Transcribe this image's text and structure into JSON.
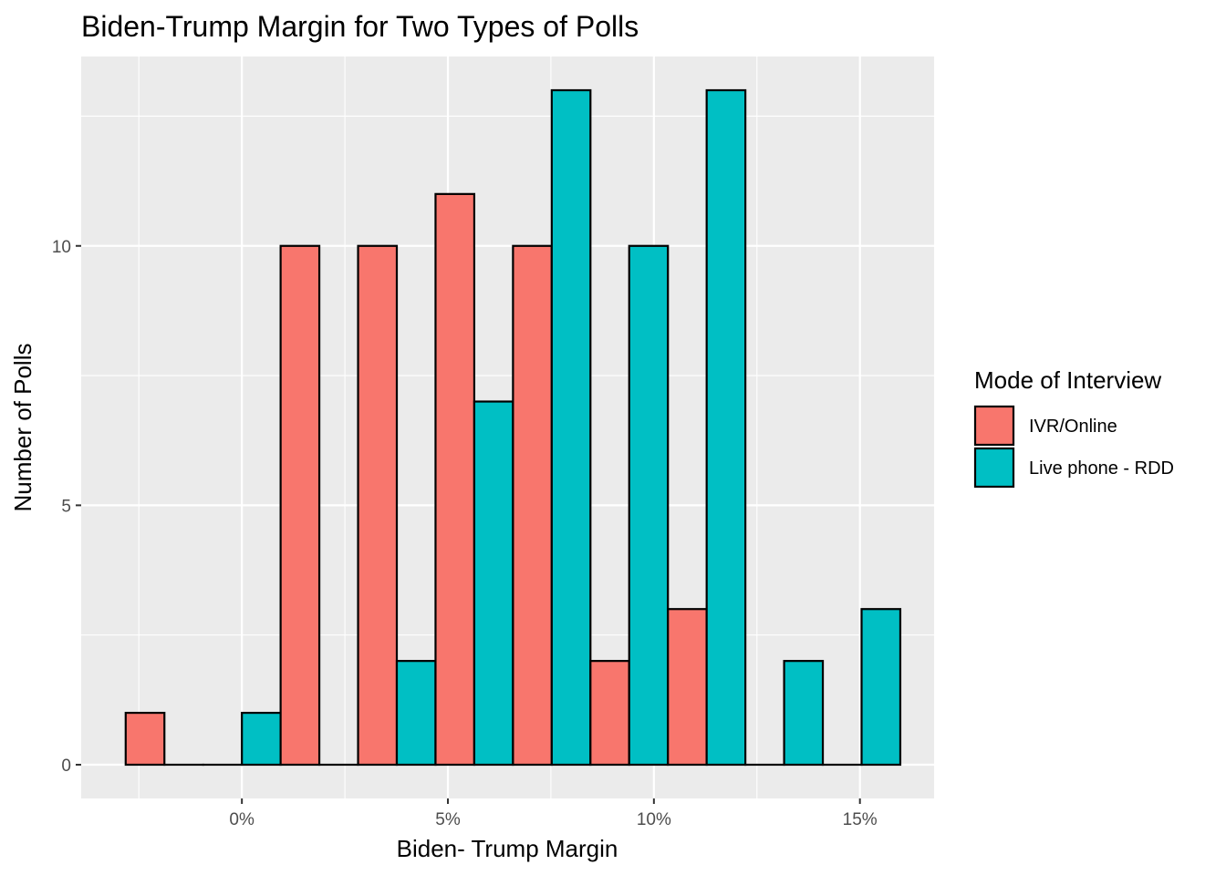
{
  "chart_data": {
    "type": "bar",
    "title": "Biden-Trump Margin for Two Types of Polls",
    "xlabel": "Biden- Trump Margin",
    "ylabel": "Number of Polls",
    "x_ticks": [
      {
        "value": 0,
        "label": "0%"
      },
      {
        "value": 5,
        "label": "5%"
      },
      {
        "value": 10,
        "label": "10%"
      },
      {
        "value": 15,
        "label": "15%"
      }
    ],
    "y_ticks": [
      {
        "value": 0,
        "label": "0"
      },
      {
        "value": 5,
        "label": "5"
      },
      {
        "value": 10,
        "label": "10"
      }
    ],
    "xlim": [
      -3.9,
      16.8
    ],
    "ylim": [
      -0.65,
      13.65
    ],
    "bin_width": 1.88,
    "bin_starts": [
      -2.82,
      -0.94,
      0.94,
      2.82,
      4.7,
      6.58,
      8.46,
      10.34,
      12.22,
      14.1
    ],
    "legend_title": "Mode of Interview",
    "legend_position": "right",
    "grid": true,
    "series": [
      {
        "name": "IVR/Online",
        "color": "#F8766D",
        "values": [
          1,
          0,
          10,
          10,
          11,
          10,
          2,
          3,
          0,
          0
        ]
      },
      {
        "name": "Live phone - RDD",
        "color": "#00BFC4",
        "values": [
          0,
          1,
          0,
          2,
          7,
          13,
          10,
          13,
          2,
          3
        ]
      }
    ]
  }
}
